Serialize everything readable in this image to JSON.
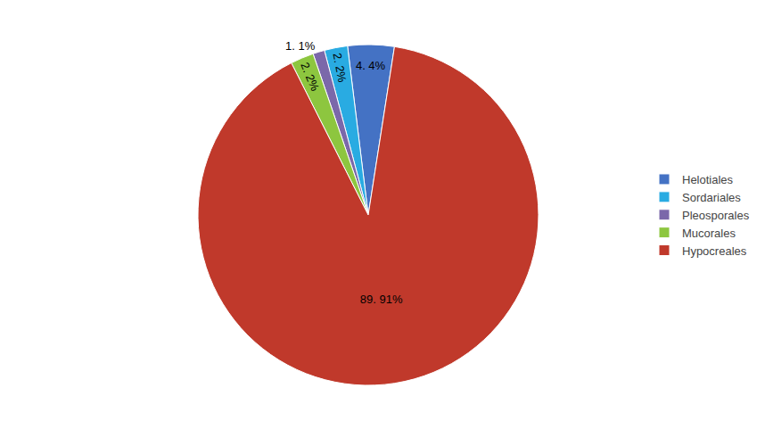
{
  "chart_data": {
    "type": "pie",
    "categories": [
      "Helotiales",
      "Sordariales",
      "Pleosporales",
      "Mucorales",
      "Hypocreales"
    ],
    "values": [
      4.4,
      2.2,
      1.1,
      2.2,
      89.91
    ],
    "value_labels": [
      "4. 4%",
      "2. 2%",
      "1. 1%",
      "2. 2%",
      "89. 91%"
    ],
    "colors": [
      "#4472C4",
      "#29ABE2",
      "#7B68AA",
      "#8DC63F",
      "#C0392B"
    ],
    "data_labels": true,
    "legend": "right"
  }
}
